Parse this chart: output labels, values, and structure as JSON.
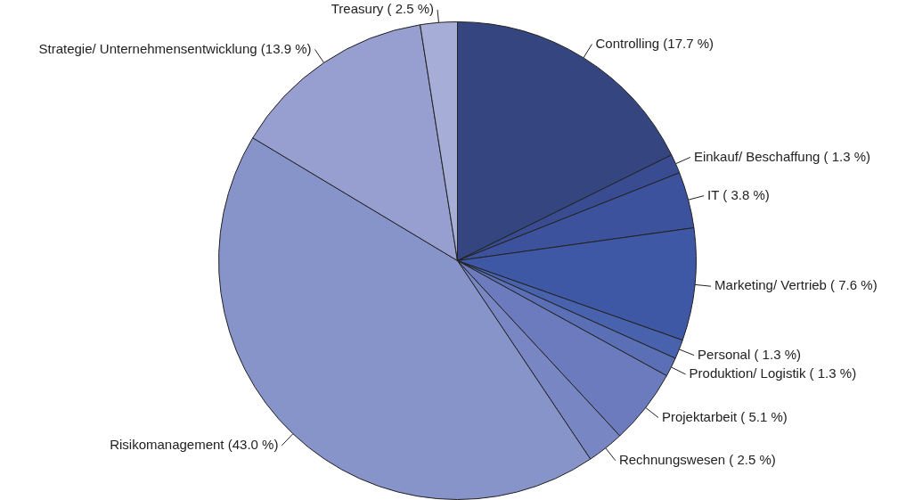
{
  "chart_data": {
    "type": "pie",
    "categories": [
      "Controlling",
      "Einkauf/ Beschaffung",
      "IT",
      "Marketing/ Vertrieb",
      "Personal",
      "Produktion/ Logistik",
      "Projektarbeit",
      "Rechnungswesen",
      "Risikomanagement",
      "Strategie/ Unternehmensentwicklung",
      "Treasury"
    ],
    "values": [
      17.7,
      1.3,
      3.8,
      7.6,
      1.3,
      1.3,
      5.1,
      2.5,
      43.0,
      13.9,
      2.5
    ],
    "value_labels": [
      "(17.7 %)",
      "( 1.3 %)",
      "( 3.8 %)",
      "( 7.6 %)",
      "( 1.3 %)",
      "( 1.3 %)",
      "( 5.1 %)",
      "( 2.5 %)",
      "(43.0 %)",
      "(13.9 %)",
      "( 2.5 %)"
    ],
    "colors": [
      "#34457f",
      "#394c92",
      "#3c529d",
      "#3e58a6",
      "#4862ad",
      "#5a6fb6",
      "#6b7bbd",
      "#7886c3",
      "#8794ca",
      "#969fcf",
      "#a6aed7"
    ],
    "legend": false
  }
}
